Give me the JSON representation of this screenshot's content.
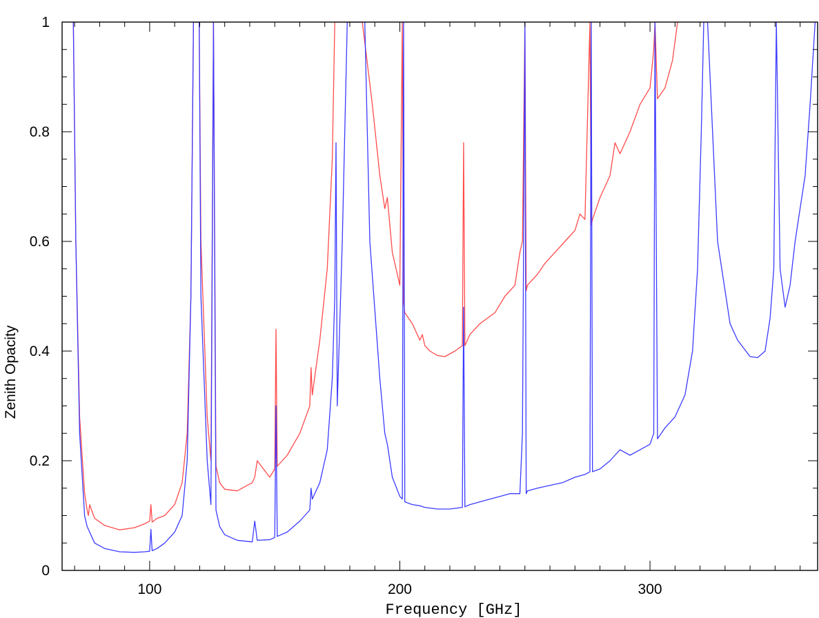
{
  "chart_data": {
    "type": "line",
    "title": "",
    "xlabel": "Frequency [GHz]",
    "ylabel": "Zenith Opacity",
    "xlim": [
      65,
      367
    ],
    "ylim": [
      0,
      1
    ],
    "x_ticks": [
      100,
      200,
      300
    ],
    "x_tick_labels": [
      "100",
      "200",
      "300"
    ],
    "y_ticks": [
      0,
      0.2,
      0.4,
      0.6,
      0.8,
      1
    ],
    "y_tick_labels": [
      "0",
      "0.2",
      "0.4",
      "0.6",
      "0.8",
      "1"
    ],
    "grid": false,
    "legend": "none",
    "series": [
      {
        "color": "#ff4a4a",
        "x": [
          69.5,
          70.5,
          72,
          74,
          75,
          75.5,
          76,
          78,
          82,
          88,
          94,
          98,
          100,
          100.5,
          101,
          103,
          106,
          110,
          113,
          115,
          116.5,
          117.5,
          119.8,
          120.5,
          123,
          124.5,
          125.5,
          126.5,
          128,
          130,
          135,
          141,
          142,
          143,
          148,
          150,
          150.5,
          151,
          155,
          160,
          164,
          164.5,
          165,
          168,
          171,
          173,
          174,
          177,
          179,
          185,
          189,
          192,
          194,
          195,
          197,
          200,
          201,
          201.5,
          202,
          205,
          208,
          209,
          210,
          212,
          215,
          218,
          222,
          225,
          225.5,
          226,
          228,
          232,
          238,
          242,
          246,
          248,
          249,
          250,
          250.5,
          251,
          255,
          258,
          262,
          266,
          270,
          272,
          274,
          276,
          276.5,
          277,
          280,
          284,
          286,
          288,
          292,
          296,
          300,
          301.5,
          302,
          303,
          306,
          309,
          311
        ],
        "y": [
          1.0,
          0.6,
          0.28,
          0.14,
          0.11,
          0.1,
          0.12,
          0.095,
          0.082,
          0.074,
          0.078,
          0.085,
          0.09,
          0.12,
          0.088,
          0.095,
          0.1,
          0.12,
          0.16,
          0.25,
          0.5,
          1.0,
          1.0,
          0.6,
          0.28,
          0.2,
          1.0,
          0.19,
          0.16,
          0.148,
          0.145,
          0.16,
          0.17,
          0.2,
          0.17,
          0.185,
          0.44,
          0.19,
          0.21,
          0.25,
          0.3,
          0.37,
          0.32,
          0.42,
          0.55,
          0.75,
          1.0,
          1.0,
          1.0,
          1.0,
          0.85,
          0.72,
          0.66,
          0.68,
          0.58,
          0.52,
          1.0,
          0.49,
          0.47,
          0.45,
          0.42,
          0.43,
          0.41,
          0.4,
          0.392,
          0.39,
          0.4,
          0.41,
          0.78,
          0.41,
          0.43,
          0.45,
          0.47,
          0.5,
          0.52,
          0.58,
          0.6,
          1.0,
          0.51,
          0.52,
          0.54,
          0.56,
          0.58,
          0.6,
          0.62,
          0.65,
          0.64,
          1.0,
          0.63,
          0.64,
          0.68,
          0.72,
          0.78,
          0.76,
          0.8,
          0.85,
          0.88,
          0.95,
          1.0,
          0.86,
          0.88,
          0.93,
          1.0
        ]
      },
      {
        "color": "#3a3aff",
        "x": [
          69.5,
          70.5,
          72,
          74,
          75,
          75.5,
          76,
          78,
          82,
          88,
          94,
          98,
          100,
          100.5,
          101,
          103,
          106,
          110,
          113,
          115,
          116.5,
          117.5,
          119.8,
          120.5,
          123,
          124.5,
          125.5,
          126.5,
          128,
          130,
          135,
          141,
          142,
          143,
          148,
          150,
          150.5,
          151,
          155,
          160,
          164,
          164.5,
          165,
          168,
          171,
          173,
          174,
          174.5,
          175,
          177,
          179,
          184,
          186,
          188,
          192,
          194,
          195,
          197,
          200,
          201,
          201.5,
          202,
          205,
          208,
          210,
          215,
          220,
          225,
          225.5,
          226,
          228,
          232,
          236,
          240,
          244,
          248,
          249,
          250,
          250.5,
          251,
          255,
          260,
          265,
          270,
          274,
          276,
          276.5,
          277,
          280,
          284,
          286,
          288,
          292,
          296,
          300,
          301.5,
          302,
          303,
          306,
          310,
          314,
          317,
          319,
          320.5,
          321.5,
          323,
          327,
          331,
          332,
          335,
          340,
          343,
          346,
          348,
          349.5,
          350.5,
          352,
          354,
          356,
          357,
          358,
          360,
          362,
          364,
          366
        ],
        "y": [
          1.0,
          0.6,
          0.25,
          0.1,
          0.08,
          0.075,
          0.07,
          0.05,
          0.04,
          0.034,
          0.033,
          0.034,
          0.035,
          0.075,
          0.036,
          0.04,
          0.05,
          0.07,
          0.1,
          0.2,
          0.5,
          1.0,
          1.0,
          0.5,
          0.2,
          0.12,
          1.0,
          0.11,
          0.08,
          0.065,
          0.055,
          0.052,
          0.09,
          0.055,
          0.056,
          0.06,
          0.3,
          0.062,
          0.07,
          0.09,
          0.11,
          0.15,
          0.13,
          0.16,
          0.22,
          0.35,
          0.5,
          0.78,
          0.3,
          0.6,
          1.0,
          1.0,
          1.0,
          0.6,
          0.35,
          0.25,
          0.23,
          0.17,
          0.135,
          0.13,
          1.0,
          0.125,
          0.12,
          0.118,
          0.115,
          0.112,
          0.112,
          0.115,
          0.48,
          0.116,
          0.12,
          0.125,
          0.13,
          0.135,
          0.14,
          0.14,
          0.25,
          1.0,
          0.14,
          0.145,
          0.15,
          0.155,
          0.16,
          0.17,
          0.175,
          0.18,
          1.0,
          0.18,
          0.185,
          0.2,
          0.21,
          0.22,
          0.21,
          0.22,
          0.23,
          0.25,
          1.0,
          0.24,
          0.26,
          0.28,
          0.32,
          0.4,
          0.55,
          0.8,
          1.0,
          1.0,
          0.6,
          0.48,
          0.45,
          0.42,
          0.39,
          0.388,
          0.4,
          0.46,
          0.55,
          1.0,
          0.55,
          0.48,
          0.52,
          0.56,
          0.6,
          0.66,
          0.72,
          0.85,
          1.0
        ]
      }
    ]
  }
}
